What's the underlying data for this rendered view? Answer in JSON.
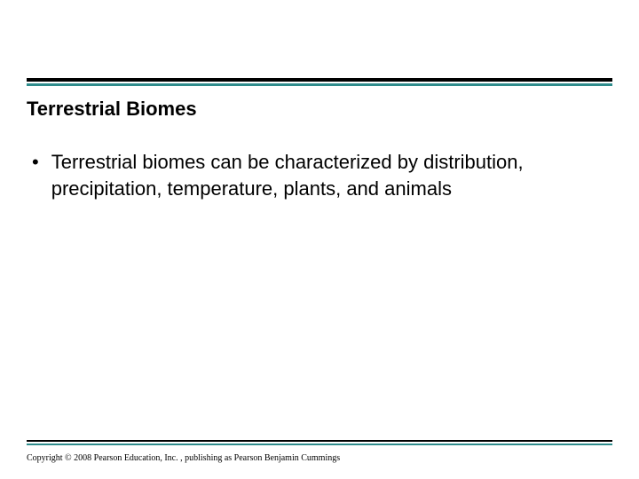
{
  "slide": {
    "title": "Terrestrial Biomes",
    "bullet": "Terrestrial biomes can be characterized by distribution, precipitation, temperature, plants, and animals",
    "footer": "Copyright © 2008 Pearson Education, Inc. , publishing as Pearson Benjamin Cummings"
  },
  "style": {
    "rule_black": "#000000",
    "rule_teal": "#2f8c8c",
    "background": "#ffffff",
    "title_fontsize": 22,
    "body_fontsize": 22,
    "footer_fontsize": 10
  }
}
